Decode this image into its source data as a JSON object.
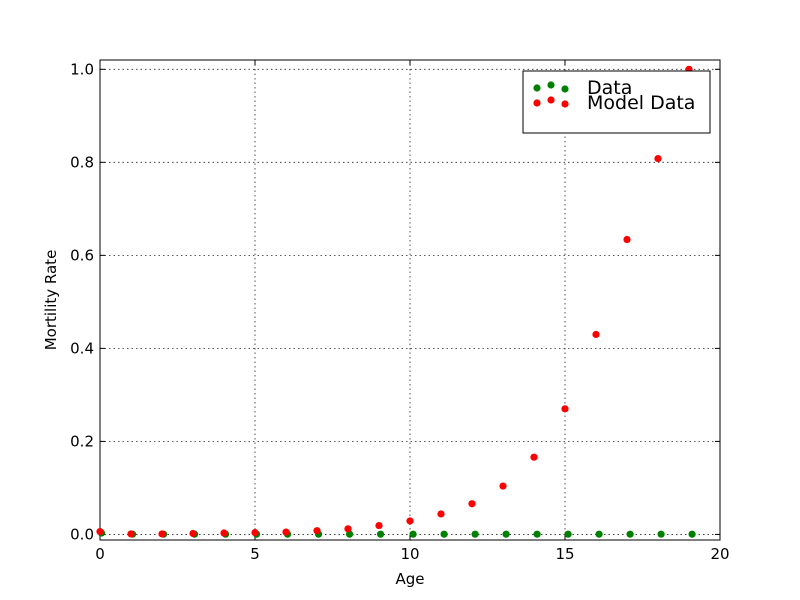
{
  "chart_data": {
    "type": "scatter",
    "xlabel": "Age",
    "ylabel": "Mortility Rate",
    "xlim": [
      0,
      20
    ],
    "ylim": [
      -0.012,
      1.02
    ],
    "xticks": [
      0,
      5,
      10,
      15,
      20
    ],
    "xtick_labels": [
      "0",
      "5",
      "10",
      "15",
      "20"
    ],
    "yticks": [
      0.0,
      0.2,
      0.4,
      0.6,
      0.8,
      1.0
    ],
    "ytick_labels": [
      "0.0",
      "0.2",
      "0.4",
      "0.6",
      "0.8",
      "1.0"
    ],
    "grid": true,
    "legend_position": "top-right",
    "series": [
      {
        "name": "Data",
        "color": "#008000",
        "x": [
          0.05,
          1.05,
          2.05,
          3.05,
          4.05,
          5.05,
          6.05,
          7.05,
          8.05,
          9.05,
          10.1,
          11.1,
          12.1,
          13.1,
          14.1,
          15.1,
          16.1,
          17.1,
          18.1,
          19.1
        ],
        "y": [
          0.003,
          0.0005,
          0.0005,
          0.0005,
          0.0005,
          0.0005,
          0.0005,
          0.0005,
          0.0005,
          0.0005,
          0.0005,
          0.0005,
          0.0005,
          0.0005,
          0.0005,
          0.0005,
          0.0005,
          0.0005,
          0.0005,
          0.0005
        ]
      },
      {
        "name": "Model Data",
        "color": "#ff0000",
        "x": [
          0,
          1,
          2,
          3,
          4,
          5,
          6,
          7,
          8,
          9,
          10,
          11,
          12,
          13,
          14,
          15,
          16,
          17,
          18,
          19
        ],
        "y": [
          0.006,
          0.001,
          0.001,
          0.002,
          0.003,
          0.004,
          0.005,
          0.008,
          0.012,
          0.019,
          0.029,
          0.044,
          0.066,
          0.104,
          0.166,
          0.27,
          0.43,
          0.634,
          0.808,
          1.0
        ]
      }
    ]
  }
}
